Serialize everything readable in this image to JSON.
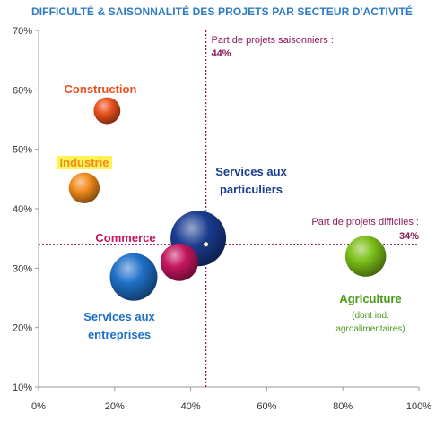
{
  "chart_data": {
    "type": "scatter",
    "title": "DIFFICULTÉ & SAISONNALITÉ DES PROJETS PAR SECTEUR D'ACTIVITÉ",
    "xlabel": "",
    "ylabel": "",
    "xlim": [
      0,
      100
    ],
    "ylim": [
      10,
      70
    ],
    "x_ticks": [
      "0%",
      "20%",
      "40%",
      "60%",
      "80%",
      "100%"
    ],
    "y_ticks": [
      "10%",
      "20%",
      "30%",
      "40%",
      "50%",
      "60%",
      "70%"
    ],
    "grid": false,
    "legend": "none",
    "points": [
      {
        "label": "Construction",
        "x": 18,
        "y": 56.5,
        "size": 3,
        "color": "#e8501e"
      },
      {
        "label": "Industrie",
        "x": 12,
        "y": 43.5,
        "size": 4,
        "color": "#f08a1c"
      },
      {
        "label": "Commerce",
        "x": 37,
        "y": 31,
        "size": 6,
        "color": "#c4155f"
      },
      {
        "label": "Services aux entreprises",
        "x": 25,
        "y": 28.5,
        "size": 9.5,
        "color": "#1f6fc7"
      },
      {
        "label": "Services aux particuliers",
        "x": 42,
        "y": 35,
        "size": 13,
        "color": "#1a3c8f"
      },
      {
        "label": "Agriculture",
        "sublabel": "(dont ind. agroalimentaires)",
        "x": 86,
        "y": 32,
        "size": 7,
        "color": "#7bbf1a"
      }
    ],
    "reference_lines": [
      {
        "axis": "x",
        "value": 44,
        "label": "Part de projets saisonniers :",
        "value_label": "44%"
      },
      {
        "axis": "y",
        "value": 34,
        "label": "Part de projets difficiles :",
        "value_label": "34%"
      }
    ],
    "crosshair": {
      "x": 44,
      "y": 34
    }
  },
  "colors": {
    "title": "#2e7bc4",
    "reference": "#8b1a55"
  }
}
